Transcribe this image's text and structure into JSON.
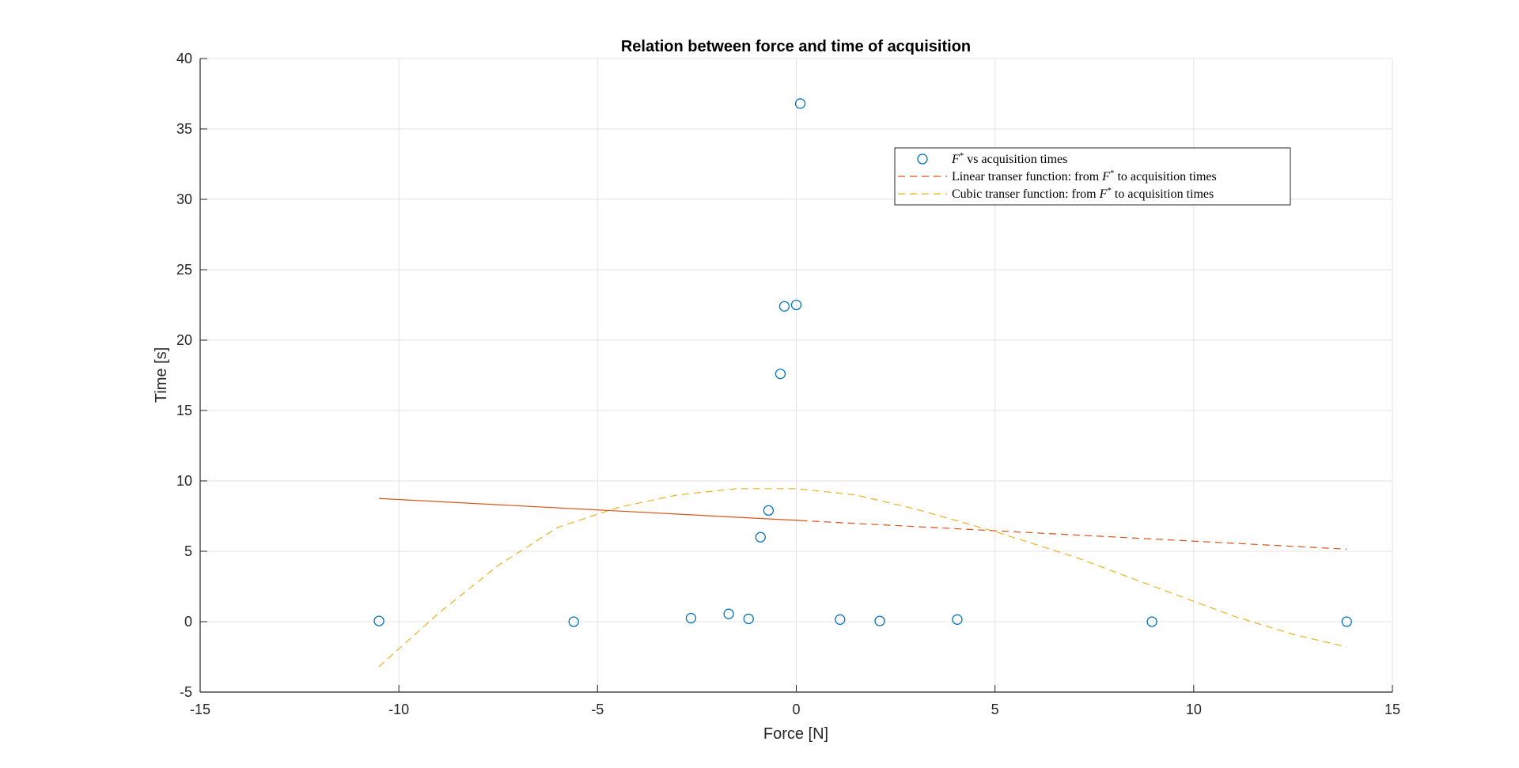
{
  "chart_data": {
    "type": "scatter",
    "title": "Relation between force and time of acquisition",
    "xlabel": "Force [N]",
    "ylabel": "Time [s]",
    "xlim": [
      -15,
      15
    ],
    "ylim": [
      -5,
      40
    ],
    "xticks": [
      -15,
      -10,
      -5,
      0,
      5,
      10,
      15
    ],
    "yticks": [
      -5,
      0,
      5,
      10,
      15,
      20,
      25,
      30,
      35,
      40
    ],
    "grid": true,
    "legend_position": "top-right",
    "series": [
      {
        "name": "F* vs acquisition times",
        "kind": "scatter",
        "marker": "circle",
        "color": "#0072BD",
        "points": [
          {
            "x": -10.5,
            "y": 0.05
          },
          {
            "x": -5.6,
            "y": 0.0
          },
          {
            "x": -2.65,
            "y": 0.25
          },
          {
            "x": -1.7,
            "y": 0.55
          },
          {
            "x": -1.2,
            "y": 0.2
          },
          {
            "x": -0.9,
            "y": 6.0
          },
          {
            "x": -0.7,
            "y": 7.9
          },
          {
            "x": -0.4,
            "y": 17.6
          },
          {
            "x": -0.3,
            "y": 22.4
          },
          {
            "x": 0.0,
            "y": 22.5
          },
          {
            "x": 0.1,
            "y": 36.8
          },
          {
            "x": 1.1,
            "y": 0.15
          },
          {
            "x": 2.1,
            "y": 0.05
          },
          {
            "x": 4.05,
            "y": 0.15
          },
          {
            "x": 8.95,
            "y": 0.0
          },
          {
            "x": 13.85,
            "y": 0.0
          }
        ]
      },
      {
        "name": "Linear transer function: from F* to acquisition times",
        "kind": "line",
        "color": "#D95319",
        "x_range": [
          -10.5,
          13.85
        ],
        "solid_until_x": 0.1,
        "points": [
          {
            "x": -10.5,
            "y": 8.75
          },
          {
            "x": 13.85,
            "y": 5.15
          }
        ]
      },
      {
        "name": "Cubic transer function: from F* to acquisition times",
        "kind": "line",
        "color": "#EDB120",
        "points": [
          {
            "x": -10.5,
            "y": -3.2
          },
          {
            "x": -9.0,
            "y": 0.6
          },
          {
            "x": -7.5,
            "y": 4.0
          },
          {
            "x": -6.0,
            "y": 6.7
          },
          {
            "x": -4.5,
            "y": 8.1
          },
          {
            "x": -3.0,
            "y": 9.0
          },
          {
            "x": -1.5,
            "y": 9.45
          },
          {
            "x": 0.0,
            "y": 9.45
          },
          {
            "x": 1.5,
            "y": 9.0
          },
          {
            "x": 3.0,
            "y": 8.0
          },
          {
            "x": 5.0,
            "y": 6.4
          },
          {
            "x": 7.0,
            "y": 4.6
          },
          {
            "x": 9.0,
            "y": 2.5
          },
          {
            "x": 11.0,
            "y": 0.4
          },
          {
            "x": 12.5,
            "y": -0.9
          },
          {
            "x": 13.85,
            "y": -1.8
          }
        ]
      }
    ]
  },
  "legend": {
    "entries": [
      {
        "prefix": "F",
        "sup": "*",
        "suffix": " vs acquisition times"
      },
      {
        "prefix": "Linear transer function: from ",
        "mid": "F",
        "sup": "*",
        "suffix": " to acquisition times"
      },
      {
        "prefix": "Cubic transer function: from ",
        "mid": "F",
        "sup": "*",
        "suffix": " to acquisition times"
      }
    ]
  }
}
